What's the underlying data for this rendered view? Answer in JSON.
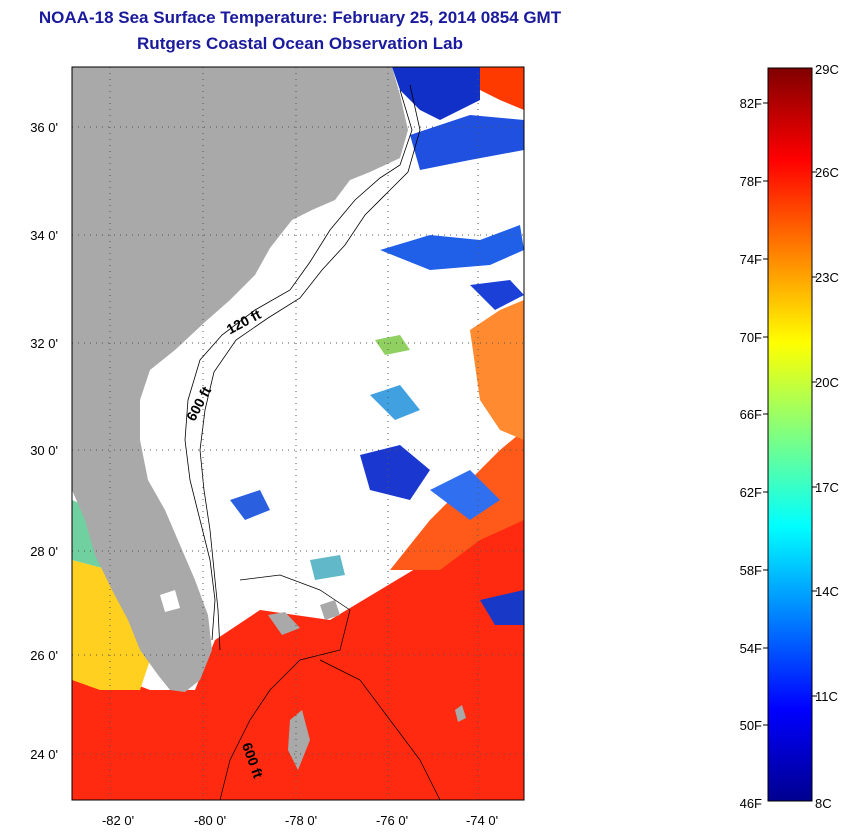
{
  "title": "NOAA-18 Sea Surface Temperature:  February 25, 2014 0854 GMT",
  "subtitle": "Rutgers Coastal Ocean Observation Lab",
  "map": {
    "lat_ticks": [
      "36 0'",
      "34 0'",
      "32 0'",
      "30 0'",
      "28 0'",
      "26 0'",
      "24 0'"
    ],
    "lon_ticks": [
      "-82 0'",
      "-80 0'",
      "-78 0'",
      "-76 0'",
      "-74 0'"
    ],
    "lat_range": [
      23.1,
      37.0
    ],
    "lon_range": [
      -82.9,
      -73.1
    ],
    "contour_labels": [
      "120 ft",
      "600 ft",
      "600 ft"
    ],
    "colors": {
      "land": "#a9a9a9",
      "cloud": "#ffffff",
      "grid": "#555555"
    }
  },
  "colorbar": {
    "f_labels": [
      "82F",
      "78F",
      "74F",
      "70F",
      "66F",
      "62F",
      "58F",
      "54F",
      "50F",
      "46F"
    ],
    "c_labels": [
      "29C",
      "26C",
      "23C",
      "20C",
      "17C",
      "14C",
      "11C",
      "8C"
    ],
    "range_c": [
      8,
      29
    ],
    "colors": [
      "#00008f",
      "#0000ff",
      "#0080ff",
      "#00ffff",
      "#80ff80",
      "#ffff00",
      "#ff8000",
      "#ff0000",
      "#800000"
    ]
  }
}
